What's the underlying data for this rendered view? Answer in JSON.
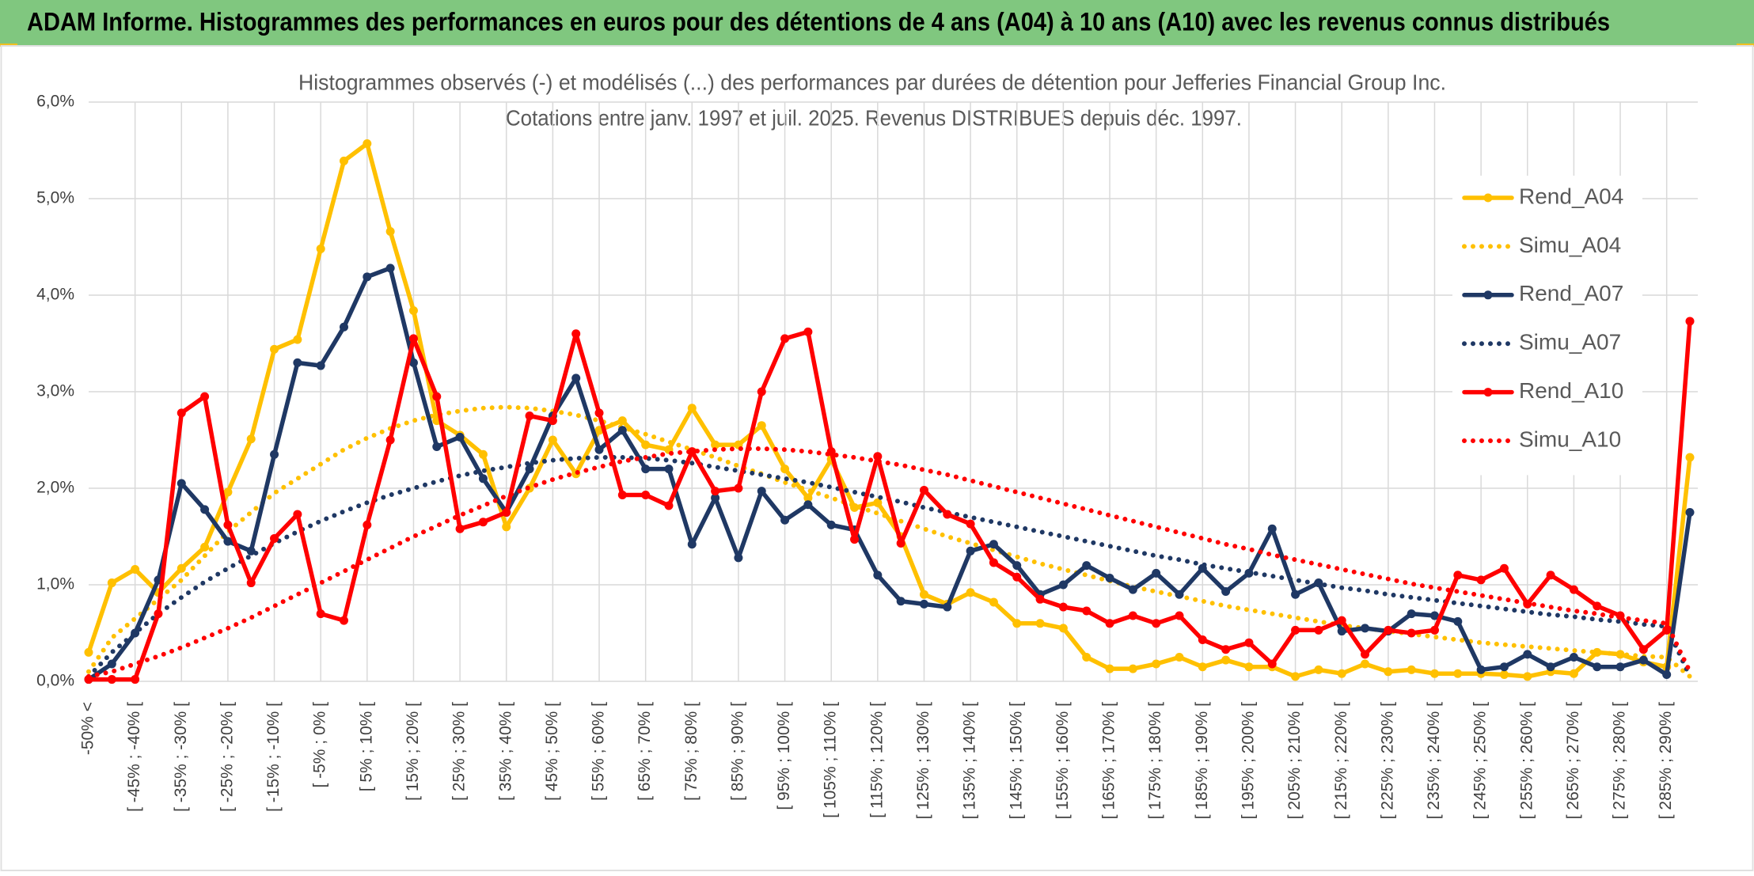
{
  "header": {
    "title": "ADAM Informe. Histogrammes des performances en euros pour des détentions de 4 ans (A04) à 10 ans (A10) avec les revenus connus distribués"
  },
  "chart_data": {
    "type": "line",
    "title": "Histogrammes observés (-) et modélisés (...) des performances par durées de détention pour Jefferies Financial Group Inc.",
    "subtitle": "Cotations entre janv. 1997 et juil. 2025. Revenus DISTRIBUES depuis déc. 1997.",
    "categories": [
      "-50% <",
      null,
      "[ -45% ; -40% [",
      null,
      "[ -35% ; -30% [",
      null,
      "[ -25% ; -20% [",
      null,
      "[ -15% ; -10% [",
      null,
      "[ -5% ; 0% [",
      null,
      "[ 5% ; 10% [",
      null,
      "[ 15% ; 20% [",
      null,
      "[ 25% ; 30% [",
      null,
      "[ 35% ; 40% [",
      null,
      "[ 45% ; 50% [",
      null,
      "[ 55% ; 60% [",
      null,
      "[ 65% ; 70% [",
      null,
      "[ 75% ; 80% [",
      null,
      "[ 85% ; 90% [",
      null,
      "[ 95% ; 100% [",
      null,
      "[ 105% ; 110% [",
      null,
      "[ 115% ; 120% [",
      null,
      "[ 125% ; 130% [",
      null,
      "[ 135% ; 140% [",
      null,
      "[ 145% ; 150% [",
      null,
      "[ 155% ; 160% [",
      null,
      "[ 165% ; 170% [",
      null,
      "[ 175% ; 180% [",
      null,
      "[ 185% ; 190% [",
      null,
      "[ 195% ; 200% [",
      null,
      "[ 205% ; 210% [",
      null,
      "[ 215% ; 220% [",
      null,
      "[ 225% ; 230% [",
      null,
      "[ 235% ; 240% [",
      null,
      "[ 245% ; 250% [",
      null,
      "[ 255% ; 260% [",
      null,
      "[ 265% ; 270% [",
      null,
      "[ 275% ; 280% [",
      null,
      "[ 285% ; 290% [",
      null
    ],
    "series": [
      {
        "name": "Rend_A04",
        "color": "#ffc000",
        "style": "solid",
        "values": [
          0.3,
          1.02,
          1.16,
          0.92,
          1.17,
          1.39,
          1.96,
          2.51,
          3.44,
          3.54,
          4.48,
          5.39,
          5.57,
          4.66,
          3.84,
          2.7,
          2.55,
          2.35,
          1.6,
          2.0,
          2.5,
          2.15,
          2.6,
          2.7,
          2.45,
          2.4,
          2.83,
          2.45,
          2.45,
          2.65,
          2.2,
          1.9,
          2.3,
          1.8,
          1.85,
          1.5,
          0.9,
          0.8,
          0.92,
          0.82,
          0.6,
          0.6,
          0.55,
          0.25,
          0.13,
          0.13,
          0.18,
          0.25,
          0.15,
          0.22,
          0.15,
          0.15,
          0.05,
          0.12,
          0.08,
          0.18,
          0.1,
          0.12,
          0.08,
          0.08,
          0.08,
          0.07,
          0.05,
          0.1,
          0.08,
          0.3,
          0.28,
          0.2,
          0.15,
          2.32
        ]
      },
      {
        "name": "Simu_A04",
        "color": "#ffc000",
        "style": "dotted",
        "values": [
          0.1,
          0.45,
          0.65,
          0.85,
          1.05,
          1.3,
          1.55,
          1.75,
          1.95,
          2.1,
          2.25,
          2.4,
          2.52,
          2.62,
          2.7,
          2.76,
          2.8,
          2.83,
          2.84,
          2.83,
          2.8,
          2.76,
          2.7,
          2.63,
          2.56,
          2.48,
          2.4,
          2.32,
          2.23,
          2.15,
          2.06,
          1.98,
          1.9,
          1.82,
          1.74,
          1.66,
          1.58,
          1.5,
          1.43,
          1.36,
          1.29,
          1.22,
          1.16,
          1.1,
          1.04,
          0.98,
          0.93,
          0.88,
          0.83,
          0.78,
          0.74,
          0.7,
          0.66,
          0.62,
          0.58,
          0.55,
          0.52,
          0.49,
          0.46,
          0.43,
          0.4,
          0.38,
          0.36,
          0.34,
          0.32,
          0.3,
          0.28,
          0.26,
          0.25,
          0.05
        ]
      },
      {
        "name": "Rend_A07",
        "color": "#1f3864",
        "style": "solid",
        "values": [
          0.02,
          0.18,
          0.5,
          1.05,
          2.05,
          1.78,
          1.45,
          1.35,
          2.35,
          3.3,
          3.27,
          3.67,
          4.19,
          4.28,
          3.3,
          2.43,
          2.53,
          2.1,
          1.75,
          2.2,
          2.75,
          3.14,
          2.4,
          2.6,
          2.2,
          2.2,
          1.42,
          1.9,
          1.28,
          1.97,
          1.67,
          1.83,
          1.62,
          1.57,
          1.1,
          0.83,
          0.8,
          0.77,
          1.35,
          1.42,
          1.2,
          0.9,
          1.0,
          1.2,
          1.07,
          0.95,
          1.12,
          0.9,
          1.17,
          0.93,
          1.12,
          1.58,
          0.9,
          1.02,
          0.52,
          0.55,
          0.52,
          0.7,
          0.68,
          0.62,
          0.12,
          0.15,
          0.28,
          0.15,
          0.25,
          0.15,
          0.15,
          0.22,
          0.07,
          1.75
        ]
      },
      {
        "name": "Simu_A07",
        "color": "#1f3864",
        "style": "dotted",
        "values": [
          0.05,
          0.3,
          0.5,
          0.7,
          0.87,
          1.03,
          1.17,
          1.3,
          1.43,
          1.55,
          1.66,
          1.76,
          1.85,
          1.93,
          2.0,
          2.07,
          2.13,
          2.18,
          2.22,
          2.26,
          2.29,
          2.31,
          2.32,
          2.32,
          2.31,
          2.29,
          2.26,
          2.22,
          2.18,
          2.14,
          2.1,
          2.06,
          2.01,
          1.96,
          1.91,
          1.86,
          1.8,
          1.75,
          1.7,
          1.65,
          1.6,
          1.55,
          1.5,
          1.45,
          1.4,
          1.35,
          1.3,
          1.26,
          1.21,
          1.17,
          1.13,
          1.09,
          1.05,
          1.01,
          0.97,
          0.94,
          0.9,
          0.87,
          0.84,
          0.81,
          0.78,
          0.75,
          0.72,
          0.69,
          0.67,
          0.64,
          0.62,
          0.59,
          0.57,
          0.05
        ]
      },
      {
        "name": "Rend_A10",
        "color": "#ff0000",
        "style": "solid",
        "values": [
          0.02,
          0.02,
          0.02,
          0.7,
          2.78,
          2.95,
          1.62,
          1.02,
          1.48,
          1.73,
          0.7,
          0.63,
          1.62,
          2.5,
          3.55,
          2.95,
          1.58,
          1.65,
          1.75,
          2.75,
          2.7,
          3.6,
          2.78,
          1.93,
          1.93,
          1.82,
          2.38,
          1.97,
          2.0,
          3.0,
          3.55,
          3.62,
          2.38,
          1.47,
          2.33,
          1.43,
          1.98,
          1.73,
          1.63,
          1.23,
          1.08,
          0.85,
          0.77,
          0.73,
          0.6,
          0.68,
          0.6,
          0.68,
          0.43,
          0.33,
          0.4,
          0.18,
          0.53,
          0.53,
          0.63,
          0.28,
          0.53,
          0.5,
          0.53,
          1.1,
          1.05,
          1.17,
          0.8,
          1.1,
          0.95,
          0.78,
          0.68,
          0.33,
          0.53,
          3.73
        ]
      },
      {
        "name": "Simu_A10",
        "color": "#ff0000",
        "style": "dotted",
        "values": [
          0.05,
          0.1,
          0.18,
          0.26,
          0.35,
          0.45,
          0.55,
          0.66,
          0.78,
          0.9,
          1.02,
          1.14,
          1.26,
          1.38,
          1.5,
          1.61,
          1.72,
          1.82,
          1.92,
          2.01,
          2.09,
          2.16,
          2.22,
          2.28,
          2.32,
          2.36,
          2.38,
          2.4,
          2.41,
          2.41,
          2.4,
          2.38,
          2.35,
          2.32,
          2.28,
          2.24,
          2.19,
          2.14,
          2.08,
          2.02,
          1.96,
          1.9,
          1.84,
          1.78,
          1.72,
          1.66,
          1.6,
          1.54,
          1.48,
          1.42,
          1.37,
          1.31,
          1.26,
          1.21,
          1.16,
          1.11,
          1.06,
          1.01,
          0.97,
          0.93,
          0.89,
          0.85,
          0.81,
          0.77,
          0.73,
          0.7,
          0.66,
          0.63,
          0.6,
          0.1
        ]
      }
    ],
    "ylim": [
      0,
      6
    ],
    "yticks": [
      {
        "value": 0,
        "label": "0,0%"
      },
      {
        "value": 1,
        "label": "1,0%"
      },
      {
        "value": 2,
        "label": "2,0%"
      },
      {
        "value": 3,
        "label": "3,0%"
      },
      {
        "value": 4,
        "label": "4,0%"
      },
      {
        "value": 5,
        "label": "5,0%"
      },
      {
        "value": 6,
        "label": "6,0%"
      }
    ],
    "grid": true,
    "legend": "right"
  }
}
